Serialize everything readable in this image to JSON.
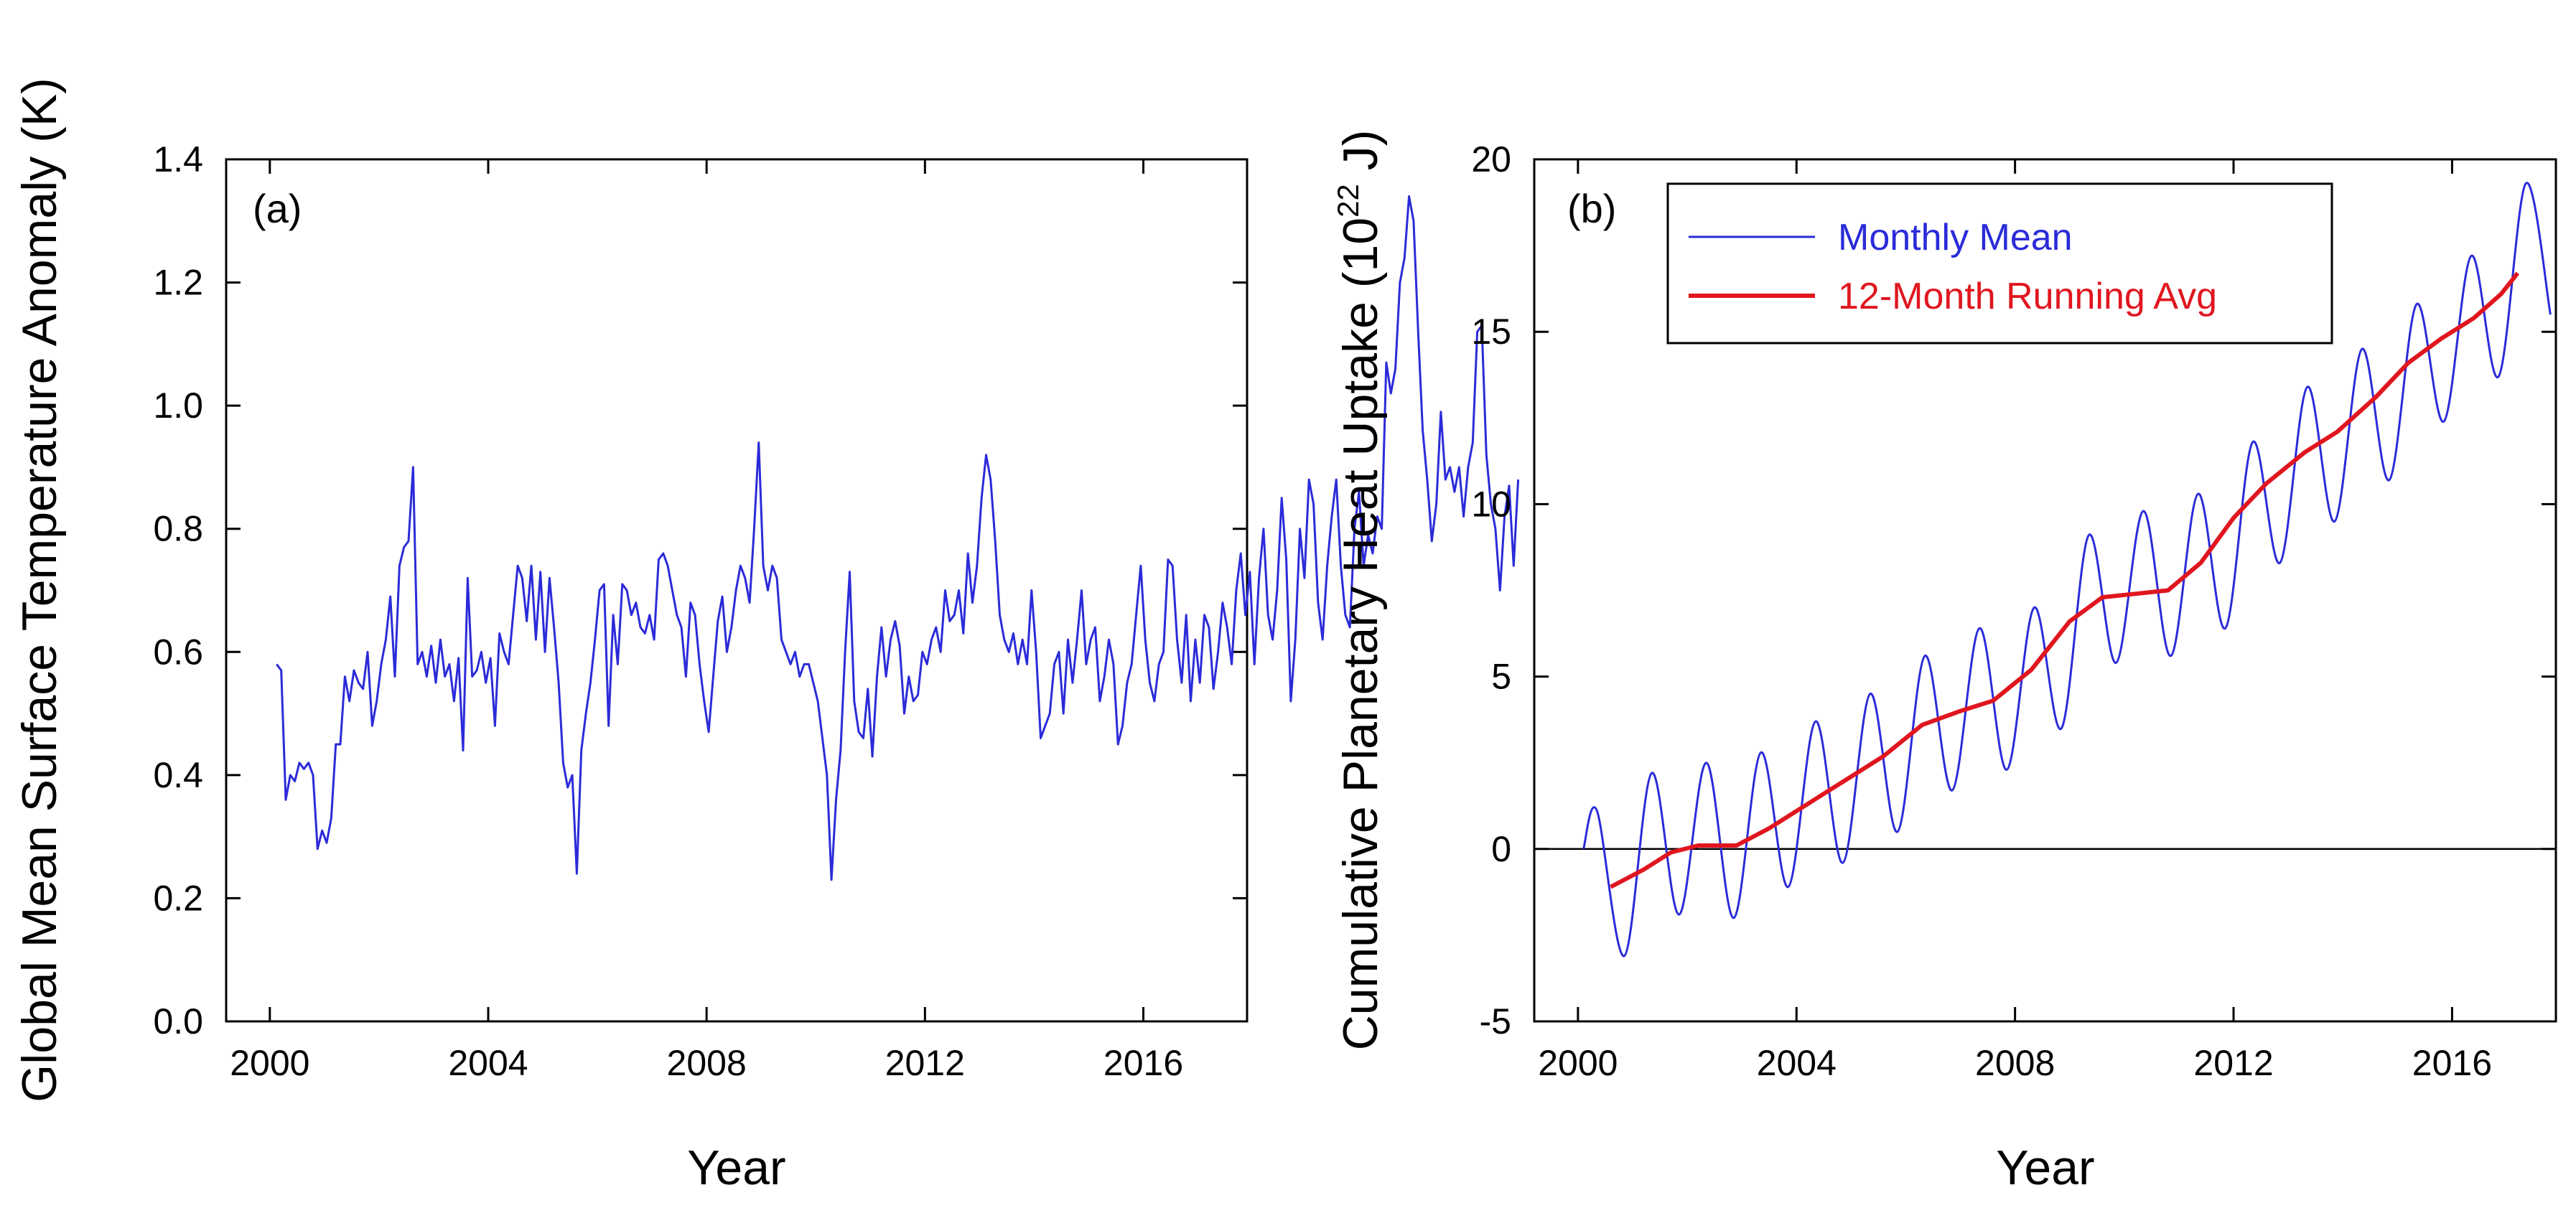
{
  "chart_data": [
    {
      "type": "line",
      "panel": "(a)",
      "xlabel": "Year",
      "ylabel": "Global Mean Surface Temperature Anomaly (K)",
      "xlim": [
        1999.2,
        2017.9
      ],
      "ylim": [
        0.0,
        1.4
      ],
      "xticks": [
        2000,
        2004,
        2008,
        2012,
        2016
      ],
      "yticks": [
        0.0,
        0.2,
        0.4,
        0.6,
        0.8,
        1.0,
        1.2,
        1.4
      ],
      "xtick_labels": [
        "2000",
        "2004",
        "2008",
        "2012",
        "2016"
      ],
      "ytick_labels": [
        "0.0",
        "0.2",
        "0.4",
        "0.6",
        "0.8",
        "1.0",
        "1.2",
        "1.4"
      ],
      "grid": false,
      "legend": "none",
      "series": [
        {
          "name": "Global Mean Surface Temperature Anomaly",
          "color": "#2b2bd9",
          "x_start": 2000.125,
          "x_step": 0.0833,
          "values": [
            0.58,
            0.57,
            0.36,
            0.4,
            0.39,
            0.42,
            0.41,
            0.42,
            0.4,
            0.28,
            0.31,
            0.29,
            0.33,
            0.45,
            0.45,
            0.56,
            0.52,
            0.57,
            0.55,
            0.54,
            0.6,
            0.48,
            0.52,
            0.58,
            0.62,
            0.69,
            0.56,
            0.74,
            0.77,
            0.78,
            0.9,
            0.58,
            0.6,
            0.56,
            0.61,
            0.55,
            0.62,
            0.56,
            0.58,
            0.52,
            0.59,
            0.44,
            0.72,
            0.56,
            0.57,
            0.6,
            0.55,
            0.59,
            0.48,
            0.63,
            0.6,
            0.58,
            0.66,
            0.74,
            0.72,
            0.65,
            0.74,
            0.62,
            0.73,
            0.6,
            0.72,
            0.64,
            0.55,
            0.42,
            0.38,
            0.4,
            0.24,
            0.44,
            0.5,
            0.55,
            0.62,
            0.7,
            0.71,
            0.48,
            0.66,
            0.58,
            0.71,
            0.7,
            0.66,
            0.68,
            0.64,
            0.63,
            0.66,
            0.62,
            0.75,
            0.76,
            0.74,
            0.7,
            0.66,
            0.64,
            0.56,
            0.68,
            0.66,
            0.58,
            0.52,
            0.47,
            0.56,
            0.65,
            0.69,
            0.6,
            0.64,
            0.7,
            0.74,
            0.72,
            0.68,
            0.8,
            0.94,
            0.74,
            0.7,
            0.74,
            0.72,
            0.62,
            0.6,
            0.58,
            0.6,
            0.56,
            0.58,
            0.58,
            0.55,
            0.52,
            0.46,
            0.4,
            0.23,
            0.36,
            0.44,
            0.6,
            0.73,
            0.52,
            0.47,
            0.46,
            0.54,
            0.43,
            0.56,
            0.64,
            0.56,
            0.62,
            0.65,
            0.61,
            0.5,
            0.56,
            0.52,
            0.53,
            0.6,
            0.58,
            0.62,
            0.64,
            0.6,
            0.7,
            0.65,
            0.66,
            0.7,
            0.63,
            0.76,
            0.68,
            0.74,
            0.85,
            0.92,
            0.88,
            0.78,
            0.66,
            0.62,
            0.6,
            0.63,
            0.58,
            0.62,
            0.58,
            0.7,
            0.6,
            0.46,
            0.48,
            0.5,
            0.58,
            0.6,
            0.5,
            0.62,
            0.55,
            0.62,
            0.7,
            0.58,
            0.62,
            0.64,
            0.52,
            0.56,
            0.62,
            0.58,
            0.45,
            0.48,
            0.55,
            0.58,
            0.66,
            0.74,
            0.62,
            0.55,
            0.52,
            0.58,
            0.6,
            0.75,
            0.74,
            0.62,
            0.55,
            0.66,
            0.52,
            0.62,
            0.55,
            0.66,
            0.64,
            0.54,
            0.6,
            0.68,
            0.64,
            0.58,
            0.7,
            0.76,
            0.66,
            0.73,
            0.58,
            0.72,
            0.8,
            0.66,
            0.62,
            0.7,
            0.85,
            0.75,
            0.52,
            0.62,
            0.8,
            0.72,
            0.88,
            0.84,
            0.68,
            0.62,
            0.74,
            0.82,
            0.88,
            0.74,
            0.66,
            0.64,
            0.8,
            0.86,
            0.74,
            0.79,
            0.76,
            0.82,
            0.8,
            1.07,
            1.02,
            1.06,
            1.2,
            1.24,
            1.34,
            1.3,
            1.12,
            0.96,
            0.88,
            0.78,
            0.84,
            0.99,
            0.88,
            0.9,
            0.86,
            0.9,
            0.82,
            0.9,
            0.94,
            1.12,
            1.13,
            0.92,
            0.84,
            0.8,
            0.7,
            0.82,
            0.87,
            0.74,
            0.88
          ]
        }
      ]
    },
    {
      "type": "line",
      "panel": "(b)",
      "xlabel": "Year",
      "ylabel": "Cumulative Planetary Heat Uptake (10",
      "ylabel_exponent": "22",
      "ylabel_unit": " J)",
      "xlim": [
        1999.2,
        2017.9
      ],
      "ylim": [
        -5,
        20
      ],
      "xticks": [
        2000,
        2004,
        2008,
        2012,
        2016
      ],
      "yticks": [
        -5,
        0,
        5,
        10,
        15,
        20
      ],
      "xtick_labels": [
        "2000",
        "2004",
        "2008",
        "2012",
        "2016"
      ],
      "ytick_labels": [
        "-5",
        "0",
        "5",
        "10",
        "15",
        "20"
      ],
      "grid": false,
      "reference_line_y": 0,
      "legend": "top-left",
      "series": [
        {
          "name": "Monthly Mean",
          "color": "#2b2bd9",
          "points": [
            [
              2000.1,
              0.0
            ],
            [
              2000.35,
              1.1
            ],
            [
              2000.85,
              -3.1
            ],
            [
              2001.35,
              2.2
            ],
            [
              2001.85,
              -1.9
            ],
            [
              2002.35,
              2.5
            ],
            [
              2002.85,
              -2.0
            ],
            [
              2003.35,
              2.8
            ],
            [
              2003.85,
              -1.1
            ],
            [
              2004.35,
              3.7
            ],
            [
              2004.85,
              -0.4
            ],
            [
              2005.35,
              4.5
            ],
            [
              2005.85,
              0.5
            ],
            [
              2006.35,
              5.6
            ],
            [
              2006.85,
              1.7
            ],
            [
              2007.35,
              6.4
            ],
            [
              2007.85,
              2.3
            ],
            [
              2008.35,
              7.0
            ],
            [
              2008.85,
              3.5
            ],
            [
              2009.35,
              9.1
            ],
            [
              2009.85,
              5.4
            ],
            [
              2010.35,
              9.8
            ],
            [
              2010.85,
              5.6
            ],
            [
              2011.35,
              10.3
            ],
            [
              2011.85,
              6.4
            ],
            [
              2012.35,
              11.8
            ],
            [
              2012.85,
              8.3
            ],
            [
              2013.35,
              13.4
            ],
            [
              2013.85,
              9.5
            ],
            [
              2014.35,
              14.5
            ],
            [
              2014.85,
              10.7
            ],
            [
              2015.35,
              15.8
            ],
            [
              2015.85,
              12.4
            ],
            [
              2016.35,
              17.2
            ],
            [
              2016.85,
              13.7
            ],
            [
              2017.35,
              19.3
            ],
            [
              2017.8,
              15.5
            ]
          ]
        },
        {
          "name": "12-Month Running Avg",
          "color": "#e0161f",
          "points": [
            [
              2000.6,
              -1.1
            ],
            [
              2001.2,
              -0.6
            ],
            [
              2001.7,
              -0.1
            ],
            [
              2002.2,
              0.1
            ],
            [
              2002.9,
              0.1
            ],
            [
              2003.5,
              0.6
            ],
            [
              2004.3,
              1.4
            ],
            [
              2005.0,
              2.1
            ],
            [
              2005.6,
              2.7
            ],
            [
              2006.3,
              3.6
            ],
            [
              2007.0,
              4.0
            ],
            [
              2007.6,
              4.3
            ],
            [
              2008.3,
              5.2
            ],
            [
              2009.0,
              6.6
            ],
            [
              2009.6,
              7.3
            ],
            [
              2010.2,
              7.4
            ],
            [
              2010.8,
              7.5
            ],
            [
              2011.4,
              8.3
            ],
            [
              2012.0,
              9.6
            ],
            [
              2012.6,
              10.6
            ],
            [
              2013.3,
              11.5
            ],
            [
              2013.9,
              12.1
            ],
            [
              2014.6,
              13.1
            ],
            [
              2015.2,
              14.1
            ],
            [
              2015.8,
              14.8
            ],
            [
              2016.4,
              15.4
            ],
            [
              2016.9,
              16.1
            ],
            [
              2017.2,
              16.7
            ]
          ]
        }
      ]
    }
  ]
}
